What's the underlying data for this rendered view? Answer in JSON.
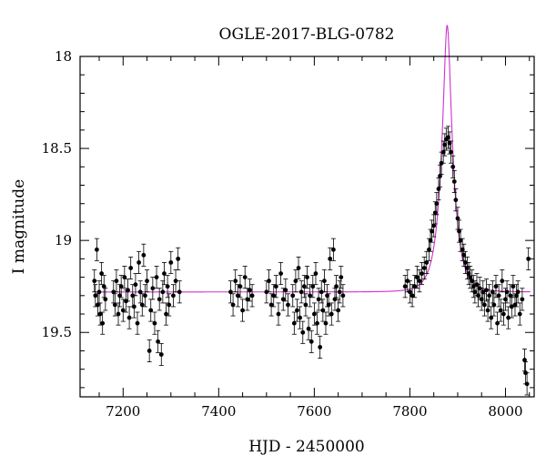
{
  "chart_data": {
    "type": "scatter",
    "title": "OGLE-2017-BLG-0782",
    "xlabel": "HJD - 2450000",
    "ylabel": "I magnitude",
    "xlim": [
      7110,
      8060
    ],
    "ylim": [
      18.0,
      19.85
    ],
    "y_inverted": true,
    "x_ticks": [
      7200,
      7400,
      7600,
      7800,
      8000
    ],
    "y_ticks": [
      18,
      18.5,
      19,
      19.5
    ],
    "x_minor_step": 50,
    "y_minor_step": 0.1,
    "model_color": "#cc33cc",
    "point_color": "#000000",
    "series": [
      {
        "points": [
          [
            7140,
            19.22
          ],
          [
            7142,
            19.3
          ],
          [
            7145,
            19.05
          ],
          [
            7147,
            19.35
          ],
          [
            7150,
            19.28
          ],
          [
            7152,
            19.4
          ],
          [
            7155,
            19.18
          ],
          [
            7157,
            19.45
          ],
          [
            7160,
            19.25
          ],
          [
            7163,
            19.32
          ],
          [
            7180,
            19.28
          ],
          [
            7183,
            19.35
          ],
          [
            7186,
            19.22
          ],
          [
            7190,
            19.4
          ],
          [
            7193,
            19.3
          ],
          [
            7196,
            19.25
          ],
          [
            7200,
            19.38
          ],
          [
            7203,
            19.2
          ],
          [
            7206,
            19.33
          ],
          [
            7210,
            19.27
          ],
          [
            7213,
            19.42
          ],
          [
            7216,
            19.15
          ],
          [
            7220,
            19.3
          ],
          [
            7223,
            19.36
          ],
          [
            7226,
            19.24
          ],
          [
            7230,
            19.45
          ],
          [
            7233,
            19.12
          ],
          [
            7236,
            19.28
          ],
          [
            7240,
            19.35
          ],
          [
            7243,
            19.08
          ],
          [
            7246,
            19.3
          ],
          [
            7250,
            19.22
          ],
          [
            7255,
            19.6
          ],
          [
            7258,
            19.38
          ],
          [
            7262,
            19.26
          ],
          [
            7266,
            19.45
          ],
          [
            7270,
            19.2
          ],
          [
            7273,
            19.55
          ],
          [
            7276,
            19.32
          ],
          [
            7280,
            19.62
          ],
          [
            7283,
            19.28
          ],
          [
            7286,
            19.18
          ],
          [
            7290,
            19.4
          ],
          [
            7293,
            19.25
          ],
          [
            7296,
            19.35
          ],
          [
            7300,
            19.12
          ],
          [
            7305,
            19.3
          ],
          [
            7310,
            19.22
          ],
          [
            7315,
            19.1
          ],
          [
            7318,
            19.28
          ],
          [
            7425,
            19.28
          ],
          [
            7430,
            19.35
          ],
          [
            7435,
            19.22
          ],
          [
            7440,
            19.3
          ],
          [
            7445,
            19.25
          ],
          [
            7450,
            19.38
          ],
          [
            7455,
            19.2
          ],
          [
            7460,
            19.32
          ],
          [
            7465,
            19.27
          ],
          [
            7470,
            19.3
          ],
          [
            7500,
            19.28
          ],
          [
            7505,
            19.22
          ],
          [
            7510,
            19.35
          ],
          [
            7515,
            19.3
          ],
          [
            7520,
            19.25
          ],
          [
            7525,
            19.4
          ],
          [
            7530,
            19.18
          ],
          [
            7535,
            19.32
          ],
          [
            7540,
            19.27
          ],
          [
            7545,
            19.35
          ],
          [
            7555,
            19.3
          ],
          [
            7558,
            19.45
          ],
          [
            7561,
            19.22
          ],
          [
            7564,
            19.38
          ],
          [
            7567,
            19.15
          ],
          [
            7570,
            19.42
          ],
          [
            7573,
            19.28
          ],
          [
            7576,
            19.5
          ],
          [
            7579,
            19.25
          ],
          [
            7582,
            19.35
          ],
          [
            7585,
            19.2
          ],
          [
            7588,
            19.48
          ],
          [
            7591,
            19.3
          ],
          [
            7594,
            19.55
          ],
          [
            7597,
            19.25
          ],
          [
            7600,
            19.4
          ],
          [
            7603,
            19.18
          ],
          [
            7606,
            19.45
          ],
          [
            7609,
            19.32
          ],
          [
            7612,
            19.58
          ],
          [
            7615,
            19.28
          ],
          [
            7618,
            19.38
          ],
          [
            7621,
            19.22
          ],
          [
            7624,
            19.45
          ],
          [
            7627,
            19.3
          ],
          [
            7630,
            19.35
          ],
          [
            7633,
            19.1
          ],
          [
            7636,
            19.4
          ],
          [
            7640,
            19.05
          ],
          [
            7643,
            19.32
          ],
          [
            7646,
            19.25
          ],
          [
            7650,
            19.38
          ],
          [
            7653,
            19.28
          ],
          [
            7656,
            19.2
          ],
          [
            7660,
            19.3
          ],
          [
            7790,
            19.25
          ],
          [
            7795,
            19.22
          ],
          [
            7800,
            19.28
          ],
          [
            7805,
            19.3
          ],
          [
            7810,
            19.25
          ],
          [
            7815,
            19.2
          ],
          [
            7820,
            19.22
          ],
          [
            7825,
            19.18
          ],
          [
            7830,
            19.15
          ],
          [
            7835,
            19.12
          ],
          [
            7840,
            19.05
          ],
          [
            7843,
            19.0
          ],
          [
            7846,
            18.95
          ],
          [
            7850,
            18.92
          ],
          [
            7853,
            18.85
          ],
          [
            7856,
            18.8
          ],
          [
            7860,
            18.72
          ],
          [
            7863,
            18.65
          ],
          [
            7866,
            18.58
          ],
          [
            7870,
            18.52
          ],
          [
            7873,
            18.48
          ],
          [
            7876,
            18.45
          ],
          [
            7880,
            18.44
          ],
          [
            7883,
            18.47
          ],
          [
            7886,
            18.52
          ],
          [
            7890,
            18.6
          ],
          [
            7893,
            18.68
          ],
          [
            7896,
            18.78
          ],
          [
            7900,
            18.88
          ],
          [
            7903,
            18.95
          ],
          [
            7906,
            19.0
          ],
          [
            7910,
            19.05
          ],
          [
            7913,
            19.08
          ],
          [
            7916,
            19.12
          ],
          [
            7920,
            19.15
          ],
          [
            7923,
            19.18
          ],
          [
            7926,
            19.2
          ],
          [
            7930,
            19.22
          ],
          [
            7933,
            19.25
          ],
          [
            7936,
            19.28
          ],
          [
            7940,
            19.24
          ],
          [
            7943,
            19.3
          ],
          [
            7946,
            19.26
          ],
          [
            7950,
            19.32
          ],
          [
            7953,
            19.28
          ],
          [
            7956,
            19.35
          ],
          [
            7960,
            19.27
          ],
          [
            7963,
            19.38
          ],
          [
            7966,
            19.3
          ],
          [
            7970,
            19.42
          ],
          [
            7973,
            19.28
          ],
          [
            7976,
            19.35
          ],
          [
            7980,
            19.25
          ],
          [
            7983,
            19.45
          ],
          [
            7986,
            19.3
          ],
          [
            7990,
            19.38
          ],
          [
            7993,
            19.22
          ],
          [
            7996,
            19.4
          ],
          [
            8000,
            19.32
          ],
          [
            8003,
            19.28
          ],
          [
            8006,
            19.42
          ],
          [
            8010,
            19.3
          ],
          [
            8013,
            19.36
          ],
          [
            8016,
            19.25
          ],
          [
            8020,
            19.35
          ],
          [
            8023,
            19.3
          ],
          [
            8026,
            19.28
          ],
          [
            8030,
            19.4
          ],
          [
            8035,
            19.32
          ],
          [
            8040,
            19.65
          ],
          [
            8042,
            19.72
          ],
          [
            8045,
            19.78
          ],
          [
            8048,
            19.1
          ]
        ],
        "error": 0.06
      }
    ],
    "model": {
      "baseline": 19.28,
      "t0": 7878,
      "u0": 0.27,
      "tE": 25
    }
  }
}
